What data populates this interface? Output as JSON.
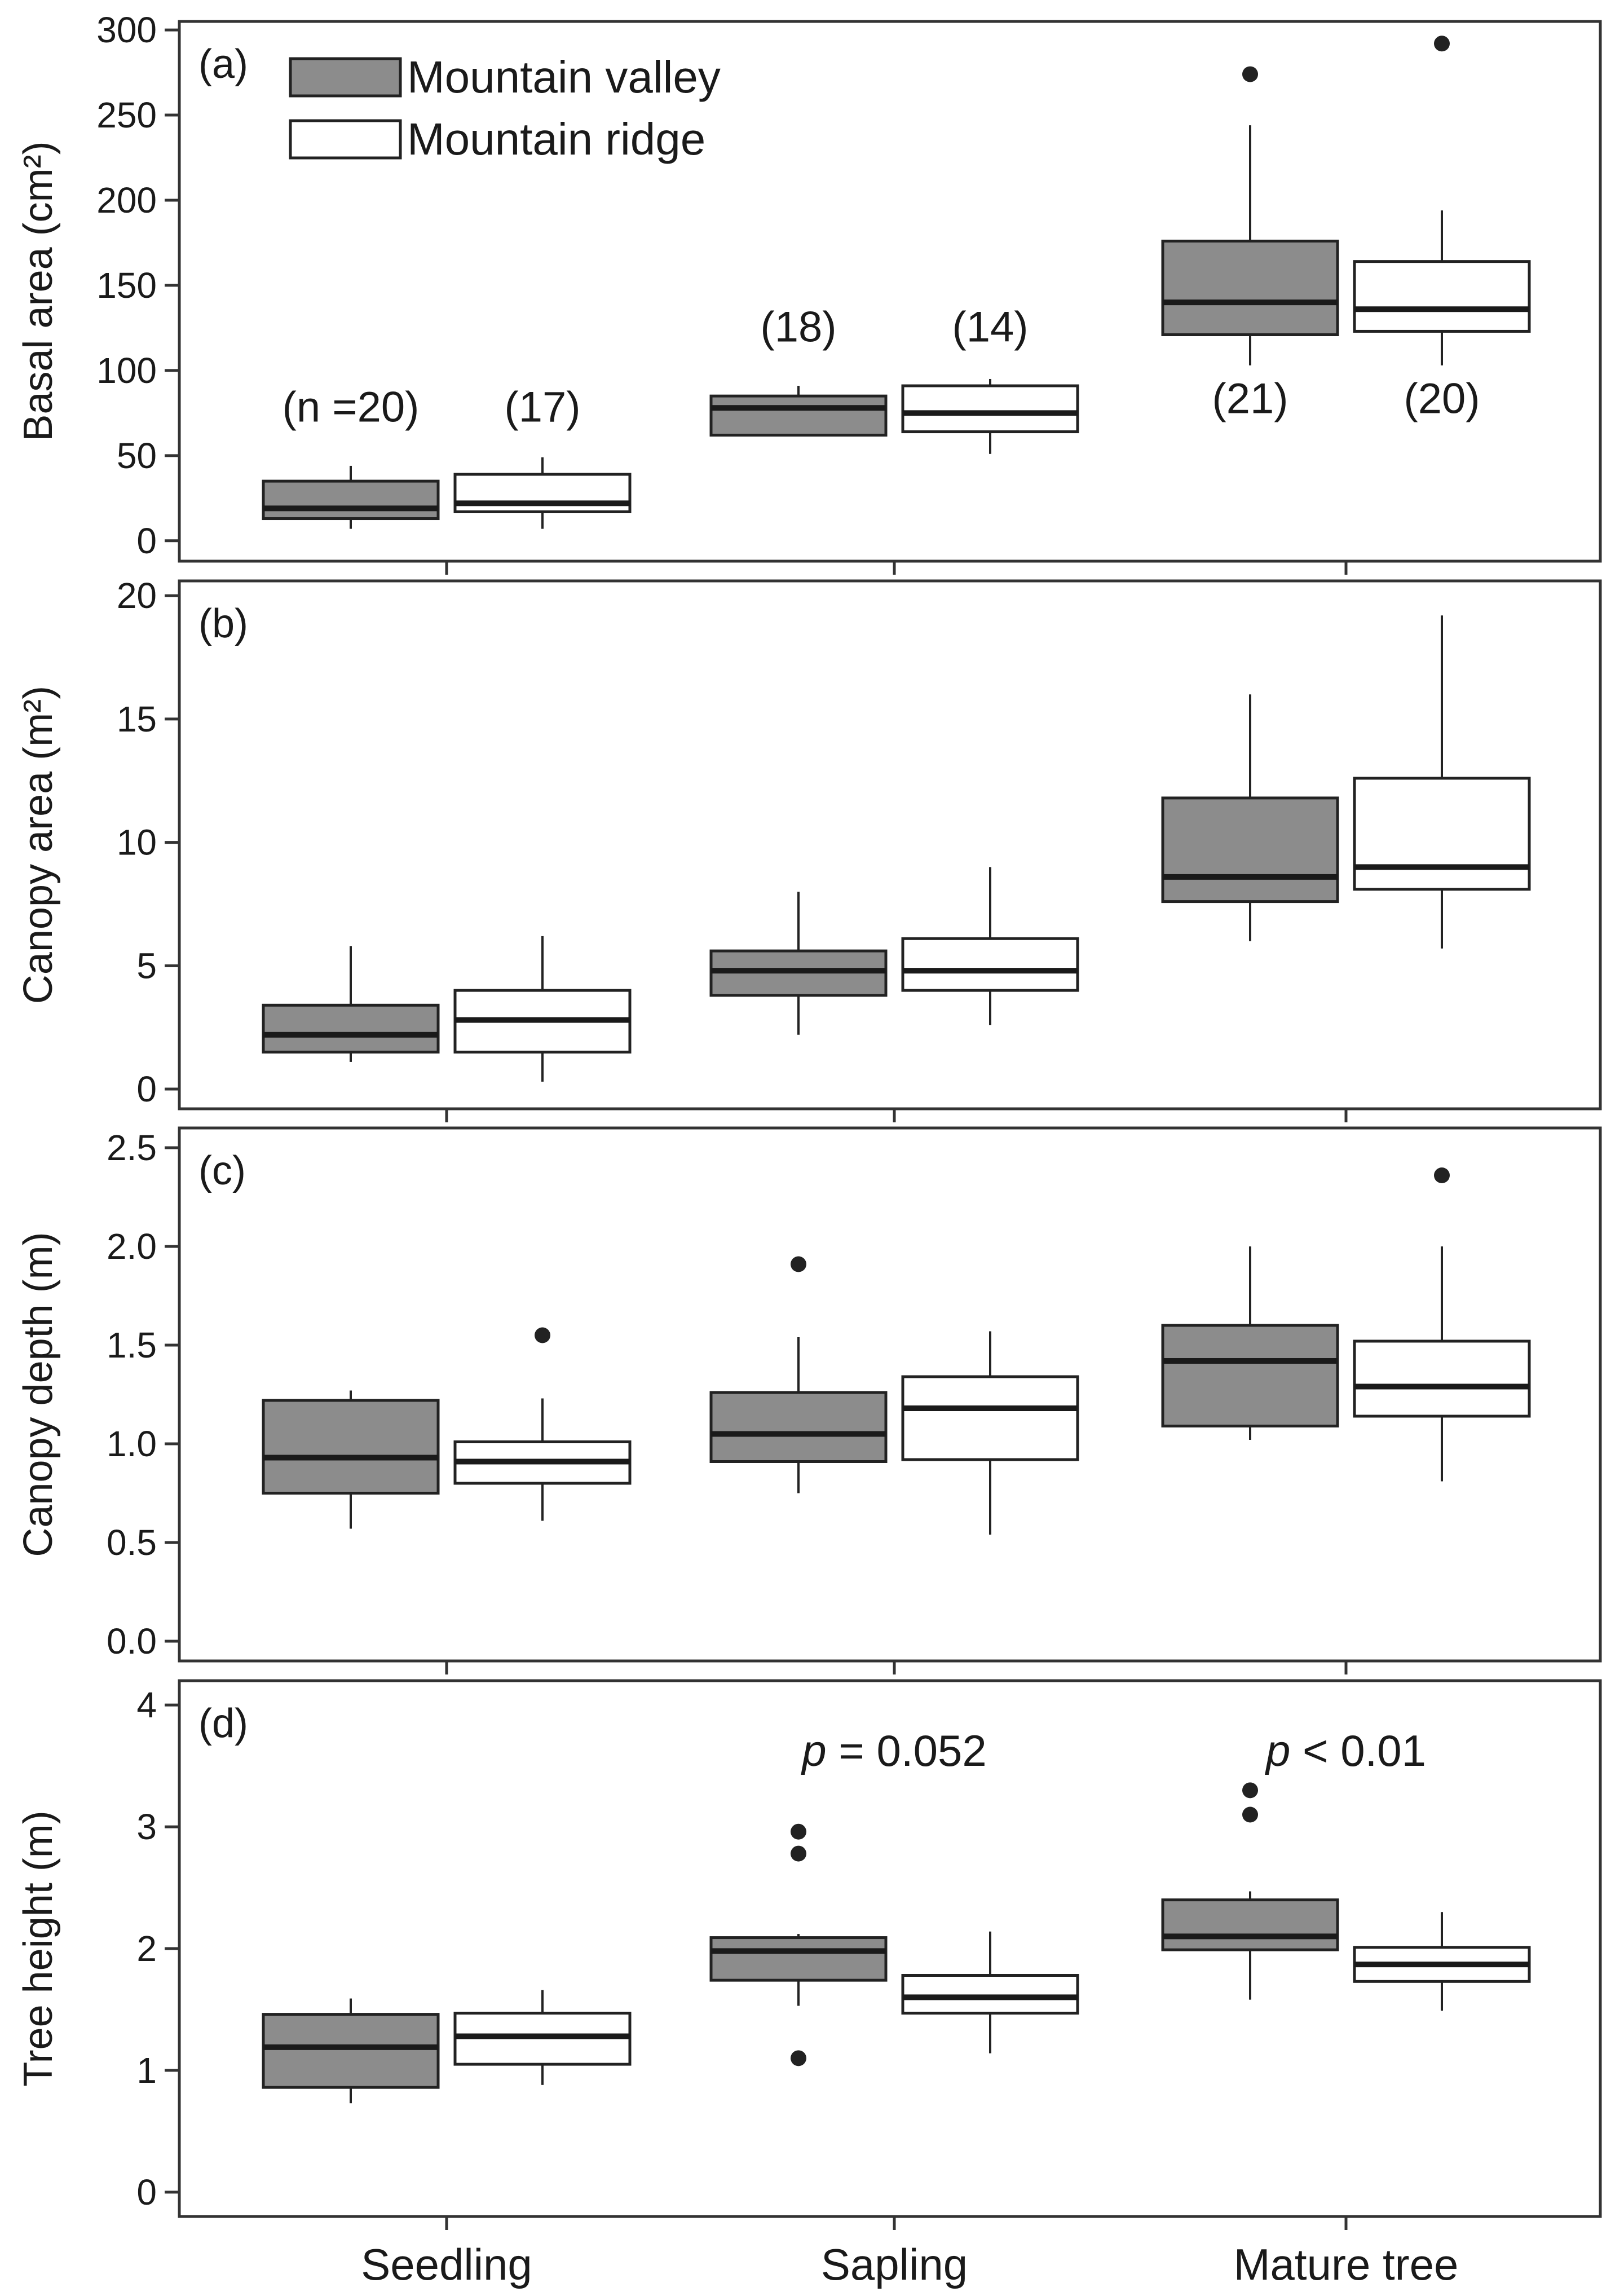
{
  "chart_data": {
    "type": "box",
    "categories": [
      "Seedling",
      "Sapling",
      "Mature tree"
    ],
    "groups": [
      {
        "name": "Mountain valley",
        "color": "#8c8c8c"
      },
      {
        "name": "Mountain ridge",
        "color": "#ffffff"
      }
    ],
    "legend": {
      "placement": "top-left",
      "entries": [
        "Mountain valley",
        "Mountain ridge"
      ]
    },
    "panels": [
      {
        "label": "(a)",
        "ylabel": "Basal area (cm²)",
        "ylim": [
          -12,
          305
        ],
        "yticks": [
          0,
          50,
          100,
          150,
          200,
          250,
          300
        ],
        "boxes": [
          [
            {
              "low": 7,
              "q1": 13,
              "median": 19,
              "q3": 35,
              "high": 44,
              "outliers": [],
              "n_label": "(n =20)",
              "n_y": 70
            },
            {
              "low": 7,
              "q1": 17,
              "median": 22,
              "q3": 39,
              "high": 49,
              "outliers": [],
              "n_label": "(17)",
              "n_y": 70
            }
          ],
          [
            {
              "low": 62,
              "q1": 62,
              "median": 78,
              "q3": 85,
              "high": 91,
              "outliers": [],
              "n_label": "(18)",
              "n_y": 117
            },
            {
              "low": 51,
              "q1": 64,
              "median": 75,
              "q3": 91,
              "high": 95,
              "outliers": [],
              "n_label": "(14)",
              "n_y": 117
            }
          ],
          [
            {
              "low": 103,
              "q1": 121,
              "median": 140,
              "q3": 176,
              "high": 244,
              "outliers": [
                274
              ],
              "n_label": "(21)",
              "n_y": 75
            },
            {
              "low": 103,
              "q1": 123,
              "median": 136,
              "q3": 164,
              "high": 194,
              "outliers": [
                292
              ],
              "n_label": "(20)",
              "n_y": 75
            }
          ]
        ]
      },
      {
        "label": "(b)",
        "ylabel": "Canopy area (m²)",
        "ylim": [
          -0.8,
          20.6
        ],
        "yticks": [
          0,
          5,
          10,
          15,
          20
        ],
        "boxes": [
          [
            {
              "low": 1.1,
              "q1": 1.5,
              "median": 2.2,
              "q3": 3.4,
              "high": 5.8,
              "outliers": []
            },
            {
              "low": 0.3,
              "q1": 1.5,
              "median": 2.8,
              "q3": 4.0,
              "high": 6.2,
              "outliers": []
            }
          ],
          [
            {
              "low": 2.2,
              "q1": 3.8,
              "median": 4.8,
              "q3": 5.6,
              "high": 8.0,
              "outliers": []
            },
            {
              "low": 2.6,
              "q1": 4.0,
              "median": 4.8,
              "q3": 6.1,
              "high": 9.0,
              "outliers": []
            }
          ],
          [
            {
              "low": 6.0,
              "q1": 7.6,
              "median": 8.6,
              "q3": 11.8,
              "high": 16.0,
              "outliers": []
            },
            {
              "low": 5.7,
              "q1": 8.1,
              "median": 9.0,
              "q3": 12.6,
              "high": 19.2,
              "outliers": []
            }
          ]
        ]
      },
      {
        "label": "(c)",
        "ylabel": "Canopy depth (m)",
        "ylim": [
          -0.1,
          2.6
        ],
        "yticks": [
          "0.0",
          "0.5",
          "1.0",
          "1.5",
          "2.0",
          "2.5"
        ],
        "boxes": [
          [
            {
              "low": 0.57,
              "q1": 0.75,
              "median": 0.93,
              "q3": 1.22,
              "high": 1.27,
              "outliers": []
            },
            {
              "low": 0.61,
              "q1": 0.8,
              "median": 0.91,
              "q3": 1.01,
              "high": 1.23,
              "outliers": [
                1.55
              ]
            }
          ],
          [
            {
              "low": 0.75,
              "q1": 0.91,
              "median": 1.05,
              "q3": 1.26,
              "high": 1.54,
              "outliers": [
                1.91
              ]
            },
            {
              "low": 0.54,
              "q1": 0.92,
              "median": 1.18,
              "q3": 1.34,
              "high": 1.57,
              "outliers": []
            }
          ],
          [
            {
              "low": 1.02,
              "q1": 1.09,
              "median": 1.42,
              "q3": 1.6,
              "high": 2.0,
              "outliers": []
            },
            {
              "low": 0.81,
              "q1": 1.14,
              "median": 1.29,
              "q3": 1.52,
              "high": 2.0,
              "outliers": [
                2.36
              ]
            }
          ]
        ]
      },
      {
        "label": "(d)",
        "ylabel": "Tree height (m)",
        "ylim": [
          -0.2,
          4.2
        ],
        "yticks": [
          0,
          1,
          2,
          3,
          4
        ],
        "p_labels": [
          {
            "category": 1,
            "text": "= 0.052",
            "y": 3.5
          },
          {
            "category": 2,
            "text": "< 0.01",
            "y": 3.5
          }
        ],
        "boxes": [
          [
            {
              "low": 0.73,
              "q1": 0.86,
              "median": 1.19,
              "q3": 1.46,
              "high": 1.59,
              "outliers": []
            },
            {
              "low": 0.88,
              "q1": 1.05,
              "median": 1.28,
              "q3": 1.47,
              "high": 1.66,
              "outliers": []
            }
          ],
          [
            {
              "low": 1.53,
              "q1": 1.74,
              "median": 1.98,
              "q3": 2.09,
              "high": 2.12,
              "outliers": [
                2.96,
                2.78,
                1.1
              ]
            },
            {
              "low": 1.14,
              "q1": 1.47,
              "median": 1.6,
              "q3": 1.78,
              "high": 2.14,
              "outliers": []
            }
          ],
          [
            {
              "low": 1.58,
              "q1": 1.99,
              "median": 2.1,
              "q3": 2.4,
              "high": 2.47,
              "outliers": [
                3.3,
                3.1
              ]
            },
            {
              "low": 1.49,
              "q1": 1.73,
              "median": 1.87,
              "q3": 2.01,
              "high": 2.3,
              "outliers": []
            }
          ]
        ]
      }
    ]
  },
  "p_symbol": "p"
}
